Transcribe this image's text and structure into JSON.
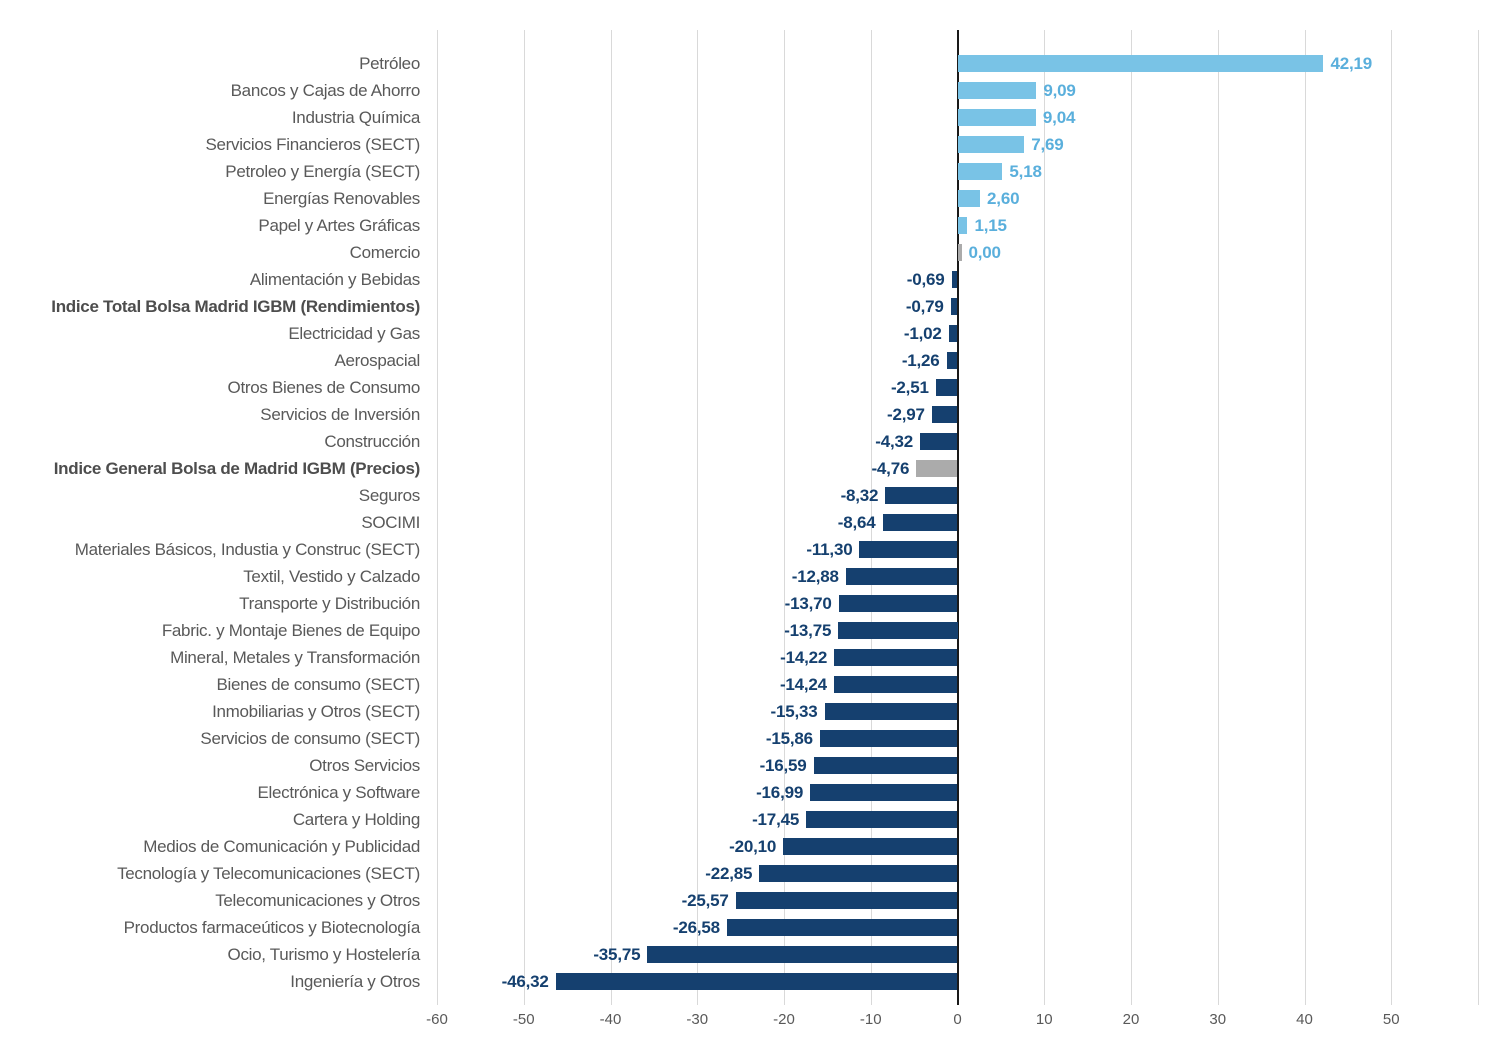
{
  "chart_data": {
    "type": "bar",
    "orientation": "horizontal",
    "title": "",
    "xlabel": "",
    "ylabel": "",
    "grid": true,
    "legend": "none",
    "value_format": "comma-decimal, two decimals",
    "x_axis": {
      "min": -60,
      "max": 60,
      "tick_step": 10,
      "ticks": [
        {
          "value": -60,
          "label": "-60"
        },
        {
          "value": -50,
          "label": "-50"
        },
        {
          "value": -40,
          "label": "-40"
        },
        {
          "value": -30,
          "label": "-30"
        },
        {
          "value": -20,
          "label": "-20"
        },
        {
          "value": -10,
          "label": "-10"
        },
        {
          "value": 0,
          "label": "0"
        },
        {
          "value": 10,
          "label": "10"
        },
        {
          "value": 20,
          "label": "20"
        },
        {
          "value": 30,
          "label": "30"
        },
        {
          "value": 40,
          "label": "40"
        },
        {
          "value": 50,
          "label": "50"
        }
      ]
    },
    "items": [
      {
        "label": "Petróleo",
        "value": 42.19,
        "display": "42,19",
        "bar": "positive",
        "text": "positive",
        "bold": false
      },
      {
        "label": "Bancos y Cajas de Ahorro",
        "value": 9.09,
        "display": "9,09",
        "bar": "positive",
        "text": "positive",
        "bold": false
      },
      {
        "label": "Industria Química",
        "value": 9.04,
        "display": "9,04",
        "bar": "positive",
        "text": "positive",
        "bold": false
      },
      {
        "label": "Servicios Financieros (SECT)",
        "value": 7.69,
        "display": "7,69",
        "bar": "positive",
        "text": "positive",
        "bold": false
      },
      {
        "label": "Petroleo y Energía (SECT)",
        "value": 5.18,
        "display": "5,18",
        "bar": "positive",
        "text": "positive",
        "bold": false
      },
      {
        "label": "Energías Renovables",
        "value": 2.6,
        "display": "2,60",
        "bar": "positive",
        "text": "positive",
        "bold": false
      },
      {
        "label": "Papel y Artes Gráficas",
        "value": 1.15,
        "display": "1,15",
        "bar": "positive",
        "text": "positive",
        "bold": false
      },
      {
        "label": "Comercio",
        "value": 0.0,
        "display": "0,00",
        "bar": "neutral",
        "text": "positive",
        "bold": false
      },
      {
        "label": "Alimentación y Bebidas",
        "value": -0.69,
        "display": "-0,69",
        "bar": "negative",
        "text": "negative",
        "bold": false
      },
      {
        "label": "Indice Total Bolsa Madrid IGBM (Rendimientos)",
        "value": -0.79,
        "display": "-0,79",
        "bar": "negative",
        "text": "negative",
        "bold": true
      },
      {
        "label": "Electricidad y Gas",
        "value": -1.02,
        "display": "-1,02",
        "bar": "negative",
        "text": "negative",
        "bold": false
      },
      {
        "label": "Aerospacial",
        "value": -1.26,
        "display": "-1,26",
        "bar": "negative",
        "text": "negative",
        "bold": false
      },
      {
        "label": "Otros Bienes de Consumo",
        "value": -2.51,
        "display": "-2,51",
        "bar": "negative",
        "text": "negative",
        "bold": false
      },
      {
        "label": "Servicios de Inversión",
        "value": -2.97,
        "display": "-2,97",
        "bar": "negative",
        "text": "negative",
        "bold": false
      },
      {
        "label": "Construcción",
        "value": -4.32,
        "display": "-4,32",
        "bar": "negative",
        "text": "negative",
        "bold": false
      },
      {
        "label": "Indice General Bolsa de Madrid IGBM (Precios)",
        "value": -4.76,
        "display": "-4,76",
        "bar": "neutral",
        "text": "negative",
        "bold": true
      },
      {
        "label": "Seguros",
        "value": -8.32,
        "display": "-8,32",
        "bar": "negative",
        "text": "negative",
        "bold": false
      },
      {
        "label": "SOCIMI",
        "value": -8.64,
        "display": "-8,64",
        "bar": "negative",
        "text": "negative",
        "bold": false
      },
      {
        "label": "Materiales Básicos, Industia y Construc (SECT)",
        "value": -11.3,
        "display": "-11,30",
        "bar": "negative",
        "text": "negative",
        "bold": false
      },
      {
        "label": "Textil, Vestido y Calzado",
        "value": -12.88,
        "display": "-12,88",
        "bar": "negative",
        "text": "negative",
        "bold": false
      },
      {
        "label": "Transporte y Distribución",
        "value": -13.7,
        "display": "-13,70",
        "bar": "negative",
        "text": "negative",
        "bold": false
      },
      {
        "label": "Fabric. y Montaje Bienes de Equipo",
        "value": -13.75,
        "display": "-13,75",
        "bar": "negative",
        "text": "negative",
        "bold": false
      },
      {
        "label": "Mineral, Metales y Transformación",
        "value": -14.22,
        "display": "-14,22",
        "bar": "negative",
        "text": "negative",
        "bold": false
      },
      {
        "label": "Bienes de consumo (SECT)",
        "value": -14.24,
        "display": "-14,24",
        "bar": "negative",
        "text": "negative",
        "bold": false
      },
      {
        "label": "Inmobiliarias y Otros (SECT)",
        "value": -15.33,
        "display": "-15,33",
        "bar": "negative",
        "text": "negative",
        "bold": false
      },
      {
        "label": "Servicios de consumo (SECT)",
        "value": -15.86,
        "display": "-15,86",
        "bar": "negative",
        "text": "negative",
        "bold": false
      },
      {
        "label": "Otros Servicios",
        "value": -16.59,
        "display": "-16,59",
        "bar": "negative",
        "text": "negative",
        "bold": false
      },
      {
        "label": "Electrónica y Software",
        "value": -16.99,
        "display": "-16,99",
        "bar": "negative",
        "text": "negative",
        "bold": false
      },
      {
        "label": "Cartera y Holding",
        "value": -17.45,
        "display": "-17,45",
        "bar": "negative",
        "text": "negative",
        "bold": false
      },
      {
        "label": "Medios de Comunicación y Publicidad",
        "value": -20.1,
        "display": "-20,10",
        "bar": "negative",
        "text": "negative",
        "bold": false
      },
      {
        "label": "Tecnología y Telecomunicaciones (SECT)",
        "value": -22.85,
        "display": "-22,85",
        "bar": "negative",
        "text": "negative",
        "bold": false
      },
      {
        "label": "Telecomunicaciones y Otros",
        "value": -25.57,
        "display": "-25,57",
        "bar": "negative",
        "text": "negative",
        "bold": false
      },
      {
        "label": "Productos farmaceúticos y Biotecnología",
        "value": -26.58,
        "display": "-26,58",
        "bar": "negative",
        "text": "negative",
        "bold": false
      },
      {
        "label": "Ocio, Turismo y Hostelería",
        "value": -35.75,
        "display": "-35,75",
        "bar": "negative",
        "text": "negative",
        "bold": false
      },
      {
        "label": "Ingeniería y Otros",
        "value": -46.32,
        "display": "-46,32",
        "bar": "negative",
        "text": "negative",
        "bold": false
      }
    ]
  },
  "colors": {
    "positive_bar": "#79C3E6",
    "negative_bar": "#15406F",
    "neutral_bar": "#ABABAB",
    "positive_label": "#5AAFDC",
    "negative_label": "#15406F",
    "gridline": "#D9D9D9",
    "zero_axis": "#1a1a1a",
    "category_text": "#595959",
    "tick_text": "#595959"
  }
}
